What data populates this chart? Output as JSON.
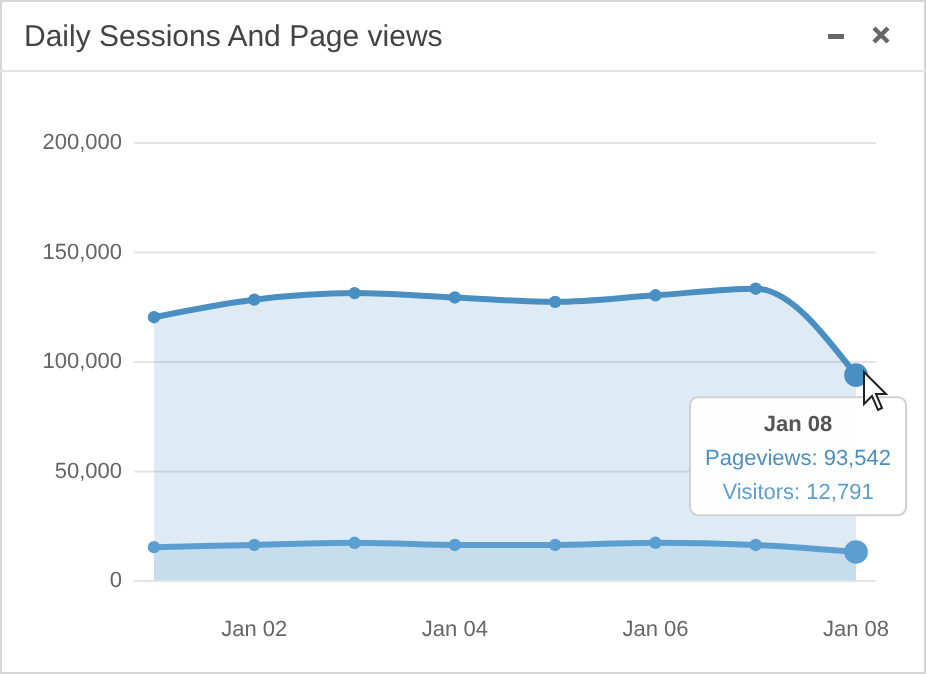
{
  "chart_data": {
    "type": "area",
    "title": "Daily Sessions And Page views",
    "categories": [
      null,
      "Jan 02",
      null,
      "Jan 04",
      null,
      "Jan 06",
      null,
      "Jan 08"
    ],
    "series": [
      {
        "name": "Pageviews:",
        "color": "#4a8fc2",
        "values": [
          120000,
          128000,
          131000,
          129000,
          127000,
          130000,
          133000,
          93542
        ],
        "value_labels": [
          null,
          null,
          null,
          null,
          null,
          null,
          null,
          "93,542"
        ]
      },
      {
        "name": "Visitors:",
        "color": "#5b9fd1",
        "values": [
          15000,
          16000,
          17000,
          16000,
          16000,
          17000,
          16000,
          12791
        ],
        "value_labels": [
          null,
          null,
          null,
          null,
          null,
          null,
          null,
          "12,791"
        ]
      }
    ],
    "ylim": [
      0,
      200000
    ],
    "yticks": [
      {
        "value": 0,
        "label": "0"
      },
      {
        "value": 50000,
        "label": "50,000"
      },
      {
        "value": 100000,
        "label": "100,000"
      },
      {
        "value": 150000,
        "label": "150,000"
      },
      {
        "value": 200000,
        "label": "200,000"
      }
    ],
    "grid": "y",
    "legend": false,
    "marker": "circle",
    "line_style": "solid",
    "annotations": [
      "Jan 08"
    ]
  }
}
